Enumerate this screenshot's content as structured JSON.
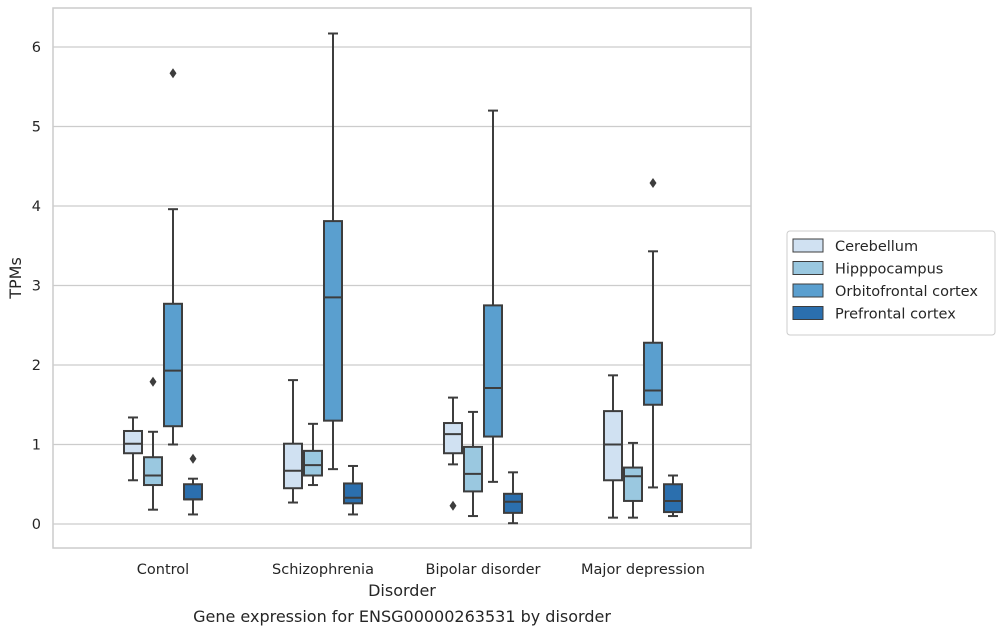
{
  "chart_data": {
    "type": "box",
    "title": "",
    "caption": "Gene expression for ENSG00000263531 by disorder",
    "xlabel": "Disorder",
    "ylabel": "TPMs",
    "ylim": [
      -0.3,
      6.5
    ],
    "yticks": [
      "0",
      "1",
      "2",
      "3",
      "4",
      "5",
      "6"
    ],
    "grid": "horizontal",
    "legend_position": "right",
    "categories": [
      "Control",
      "Schizophrenia",
      "Bipolar disorder",
      "Major depression"
    ],
    "series": [
      {
        "name": "Cerebellum",
        "color": "#d0e1f2",
        "boxes": [
          {
            "min": 0.55,
            "q1": 0.89,
            "median": 1.01,
            "q3": 1.17,
            "max": 1.34,
            "outliers": []
          },
          {
            "min": 0.27,
            "q1": 0.45,
            "median": 0.67,
            "q3": 1.01,
            "max": 1.81,
            "outliers": []
          },
          {
            "min": 0.75,
            "q1": 0.89,
            "median": 1.13,
            "q3": 1.27,
            "max": 1.59,
            "outliers": [
              0.23
            ]
          },
          {
            "min": 0.08,
            "q1": 0.55,
            "median": 1.0,
            "q3": 1.42,
            "max": 1.87,
            "outliers": []
          }
        ]
      },
      {
        "name": "Hipppocampus",
        "color": "#9ac8e0",
        "boxes": [
          {
            "min": 0.18,
            "q1": 0.49,
            "median": 0.61,
            "q3": 0.84,
            "max": 1.16,
            "outliers": [
              1.79
            ]
          },
          {
            "min": 0.49,
            "q1": 0.61,
            "median": 0.74,
            "q3": 0.92,
            "max": 1.26,
            "outliers": []
          },
          {
            "min": 0.1,
            "q1": 0.41,
            "median": 0.63,
            "q3": 0.97,
            "max": 1.41,
            "outliers": []
          },
          {
            "min": 0.08,
            "q1": 0.29,
            "median": 0.6,
            "q3": 0.71,
            "max": 1.02,
            "outliers": []
          }
        ]
      },
      {
        "name": "Orbitofrontal cortex",
        "color": "#5a9fcf",
        "boxes": [
          {
            "min": 1.0,
            "q1": 1.23,
            "median": 1.93,
            "q3": 2.77,
            "max": 3.96,
            "outliers": [
              5.67
            ]
          },
          {
            "min": 0.69,
            "q1": 1.3,
            "median": 2.85,
            "q3": 3.81,
            "max": 6.17,
            "outliers": []
          },
          {
            "min": 0.53,
            "q1": 1.1,
            "median": 1.71,
            "q3": 2.75,
            "max": 5.2,
            "outliers": []
          },
          {
            "min": 0.46,
            "q1": 1.5,
            "median": 1.68,
            "q3": 2.28,
            "max": 3.43,
            "outliers": [
              4.29
            ]
          }
        ]
      },
      {
        "name": "Prefrontal cortex",
        "color": "#2b6fae",
        "boxes": [
          {
            "min": 0.12,
            "q1": 0.31,
            "median": 0.31,
            "q3": 0.5,
            "max": 0.57,
            "outliers": [
              0.82
            ]
          },
          {
            "min": 0.12,
            "q1": 0.26,
            "median": 0.33,
            "q3": 0.51,
            "max": 0.73,
            "outliers": []
          },
          {
            "min": 0.01,
            "q1": 0.14,
            "median": 0.28,
            "q3": 0.38,
            "max": 0.65,
            "outliers": []
          },
          {
            "min": 0.1,
            "q1": 0.15,
            "median": 0.29,
            "q3": 0.5,
            "max": 0.61,
            "outliers": []
          }
        ]
      }
    ]
  }
}
